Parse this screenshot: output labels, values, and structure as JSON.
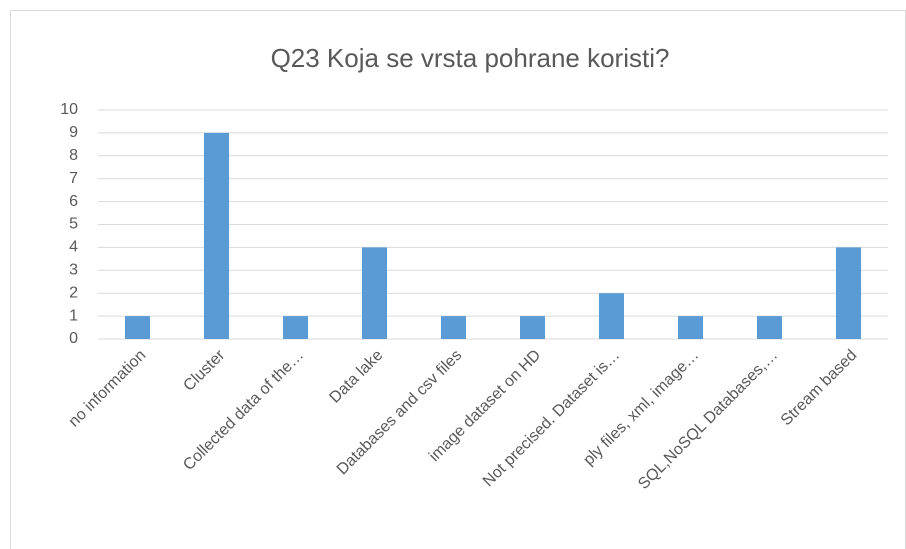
{
  "chart_data": {
    "type": "bar",
    "title": "Q23 Koja se vrsta pohrane koristi?",
    "categories": [
      "no information",
      "Cluster",
      "Collected data of the…",
      "Data lake",
      "Databases and csv files",
      "image dataset on HD",
      "Not precised. Dataset is…",
      "ply files, xml, image…",
      "SQL,NoSQL Databases,…",
      "Stream based"
    ],
    "values": [
      1,
      9,
      1,
      4,
      1,
      1,
      2,
      1,
      1,
      4
    ],
    "color": "#5b9bd5",
    "ylim": [
      0,
      10
    ],
    "yticks": [
      0,
      1,
      2,
      3,
      4,
      5,
      6,
      7,
      8,
      9,
      10
    ],
    "grid": true
  }
}
